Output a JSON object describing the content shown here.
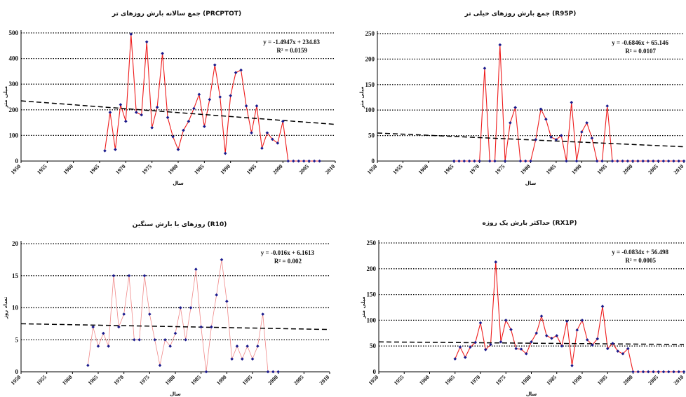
{
  "chart_data": [
    {
      "id": "prcptot",
      "type": "line",
      "title": "جمع سالانه بارش روزهای تر (PRCPTOT)",
      "xlabel": "سال",
      "ylabel": "میلی متر",
      "equation_line1": "y = -1.4947x + 234.83",
      "equation_line2": "R² = 0.0159",
      "ylim": [
        0,
        500
      ],
      "xlim": [
        1950,
        2010
      ],
      "yticks": [
        "0",
        "100",
        "200",
        "300",
        "400",
        "500"
      ],
      "xticks": [
        "1950",
        "1955",
        "1960",
        "1965",
        "1970",
        "1975",
        "1980",
        "1985",
        "1990",
        "1995",
        "2000",
        "2005",
        "2010"
      ],
      "grid": "horizontal-dotted",
      "trend": [
        234.83,
        143.14
      ],
      "line_color": "#ee1c1c",
      "marker_color": "#1a1a8c",
      "x": [
        1966,
        1967,
        1968,
        1969,
        1970,
        1971,
        1972,
        1973,
        1974,
        1975,
        1976,
        1977,
        1978,
        1979,
        1980,
        1981,
        1982,
        1983,
        1984,
        1985,
        1986,
        1987,
        1988,
        1989,
        1990,
        1991,
        1992,
        1993,
        1994,
        1995,
        1996,
        1997,
        1998,
        1999,
        2000,
        2001,
        2002,
        2003,
        2004,
        2005,
        2006,
        2007
      ],
      "values": [
        40,
        190,
        45,
        220,
        155,
        495,
        190,
        180,
        465,
        130,
        210,
        420,
        170,
        95,
        45,
        120,
        155,
        205,
        260,
        135,
        240,
        375,
        250,
        30,
        255,
        345,
        355,
        215,
        110,
        215,
        50,
        110,
        85,
        70,
        155,
        0,
        0,
        0,
        0,
        0,
        0,
        0
      ]
    },
    {
      "id": "r95p",
      "type": "line",
      "title": "جمع بارش روزهای خیلی تر (R95P)",
      "xlabel": "سال",
      "ylabel": "میلی متر",
      "equation_line1": "y = -0.6846x + 65.146",
      "equation_line2": "R² = 0.0107",
      "ylim": [
        0,
        250
      ],
      "xlim": [
        1950,
        2010
      ],
      "yticks": [
        "0",
        "50",
        "100",
        "150",
        "200",
        "250"
      ],
      "xticks": [
        "1950",
        "1955",
        "1960",
        "1965",
        "1970",
        "1975",
        "1980",
        "1985",
        "1990",
        "1995",
        "2000",
        "2005",
        "2010"
      ],
      "grid": "horizontal-dotted",
      "trend": [
        55,
        28
      ],
      "line_color": "#ee1c1c",
      "marker_color": "#1a1a8c",
      "x": [
        1965,
        1966,
        1967,
        1968,
        1969,
        1970,
        1971,
        1972,
        1973,
        1974,
        1975,
        1976,
        1977,
        1978,
        1979,
        1980,
        1981,
        1982,
        1983,
        1984,
        1985,
        1986,
        1987,
        1988,
        1989,
        1990,
        1991,
        1992,
        1993,
        1994,
        1995,
        1996,
        1997,
        1998,
        1999,
        2000,
        2001,
        2002,
        2003,
        2004,
        2005,
        2006,
        2007,
        2008,
        2009,
        2010
      ],
      "values": [
        0,
        0,
        0,
        0,
        0,
        0,
        182,
        0,
        0,
        228,
        0,
        75,
        105,
        0,
        0,
        0,
        42,
        102,
        82,
        47,
        42,
        50,
        0,
        115,
        0,
        57,
        75,
        45,
        0,
        0,
        108,
        0,
        0,
        0,
        0,
        0,
        0,
        0,
        0,
        0,
        0,
        0,
        0,
        0,
        0,
        0
      ]
    },
    {
      "id": "r10",
      "type": "line",
      "title": "روزهای با بارش سنگین (R10)",
      "xlabel": "سال",
      "ylabel": "تعداد روز",
      "equation_line1": "y = -0.016x + 6.1613",
      "equation_line2": "R² = 0.002",
      "ylim": [
        0,
        20
      ],
      "xlim": [
        1950,
        2010
      ],
      "yticks": [
        "0",
        "5",
        "10",
        "15",
        "20"
      ],
      "xticks": [
        "1950",
        "1955",
        "1960",
        "1965",
        "1970",
        "1975",
        "1980",
        "1985",
        "1990",
        "1995",
        "2000",
        "2005",
        "2010"
      ],
      "grid": "horizontal-dotted",
      "trend": [
        7.5,
        6.6
      ],
      "line_color": "#f08a8a",
      "marker_color": "#1a1a8c",
      "x": [
        1963,
        1964,
        1965,
        1966,
        1967,
        1968,
        1969,
        1970,
        1971,
        1972,
        1973,
        1974,
        1975,
        1976,
        1977,
        1978,
        1979,
        1980,
        1981,
        1982,
        1983,
        1984,
        1985,
        1986,
        1987,
        1988,
        1989,
        1990,
        1991,
        1992,
        1993,
        1994,
        1995,
        1996,
        1997,
        1998,
        1999,
        2000
      ],
      "values": [
        1,
        7,
        4,
        6,
        4,
        15,
        7,
        9,
        15,
        5,
        5,
        15,
        9,
        5,
        1,
        5,
        4,
        6,
        10,
        5,
        10,
        16,
        7,
        0,
        7,
        12,
        17.5,
        11,
        2,
        4,
        2,
        4,
        2,
        4,
        9,
        0,
        0,
        0
      ]
    },
    {
      "id": "rx1p",
      "type": "line",
      "title": "حداکثر بارش یک روزه (RX1P)",
      "xlabel": "سال",
      "ylabel": "میلی متر",
      "equation_line1": "y = -0.0834x + 56.498",
      "equation_line2": "R² = 0.0005",
      "ylim": [
        0,
        250
      ],
      "xlim": [
        1950,
        2010
      ],
      "yticks": [
        "0",
        "50",
        "100",
        "150",
        "200",
        "250"
      ],
      "xticks": [
        "1950",
        "1955",
        "1960",
        "1965",
        "1970",
        "1975",
        "1980",
        "1985",
        "1990",
        "1995",
        "2000",
        "2005",
        "2010"
      ],
      "grid": "horizontal-dotted",
      "trend": [
        58,
        53
      ],
      "line_color": "#ee1c1c",
      "marker_color": "#1a1a8c",
      "x": [
        1965,
        1966,
        1967,
        1968,
        1969,
        1970,
        1971,
        1972,
        1973,
        1974,
        1975,
        1976,
        1977,
        1978,
        1979,
        1980,
        1981,
        1982,
        1983,
        1984,
        1985,
        1986,
        1987,
        1988,
        1989,
        1990,
        1991,
        1992,
        1993,
        1994,
        1995,
        1996,
        1997,
        1998,
        1999,
        2000,
        2001,
        2002,
        2003,
        2004,
        2005,
        2006,
        2007,
        2008,
        2009,
        2010
      ],
      "values": [
        25,
        48,
        28,
        48,
        57,
        95,
        43,
        53,
        213,
        58,
        100,
        82,
        45,
        44,
        35,
        58,
        75,
        108,
        70,
        65,
        70,
        50,
        98,
        12,
        81,
        100,
        62,
        52,
        64,
        127,
        45,
        55,
        40,
        35,
        45,
        0,
        0,
        0,
        0,
        0,
        0,
        0,
        0,
        0,
        0,
        0
      ]
    }
  ]
}
